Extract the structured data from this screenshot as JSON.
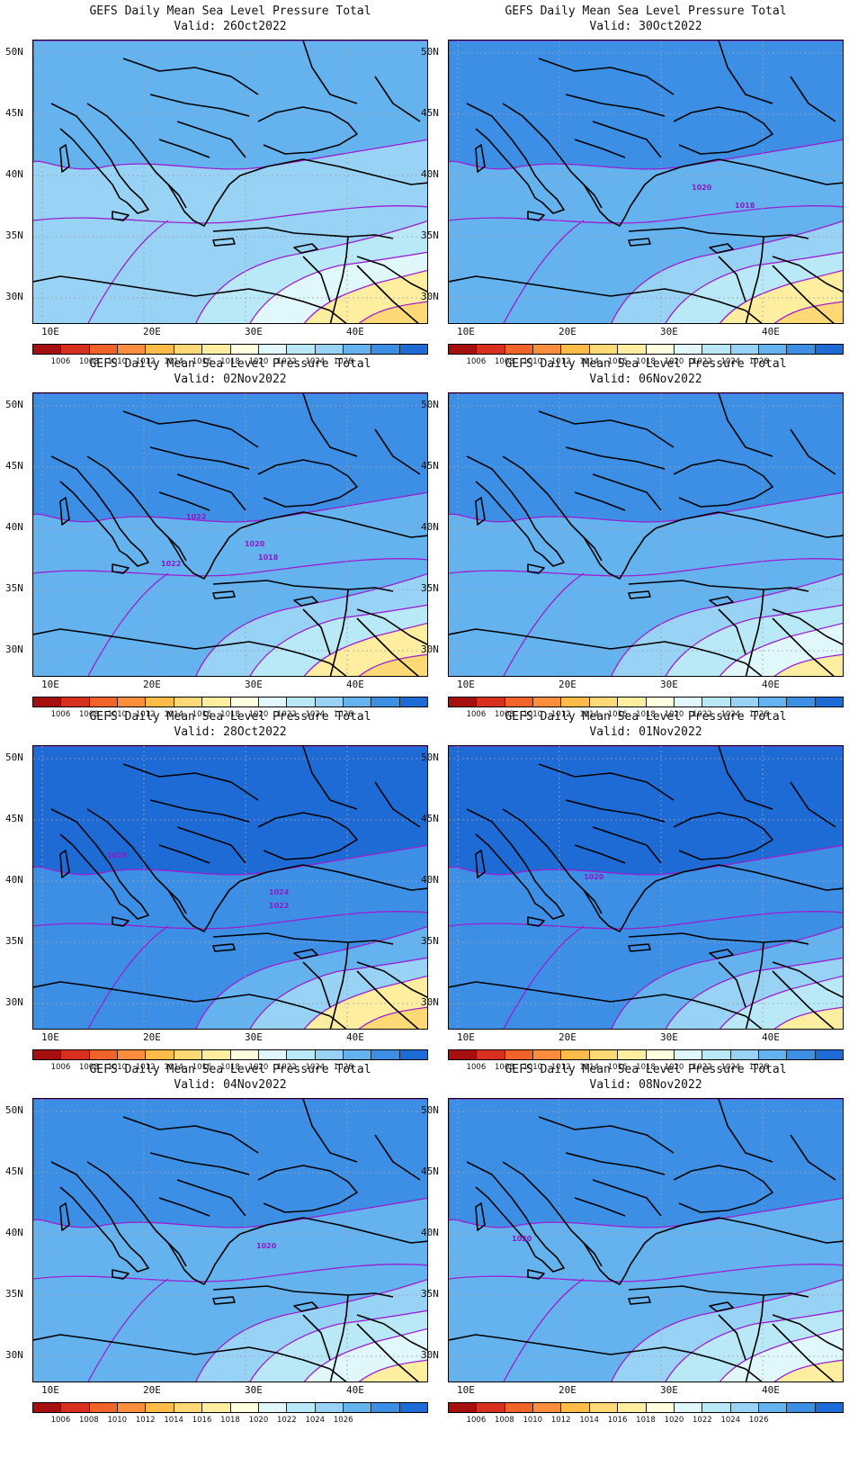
{
  "colorbar": {
    "colors": [
      "#a50f0f",
      "#d7301f",
      "#f2632a",
      "#fc8d3c",
      "#fdbb4a",
      "#fed976",
      "#ffeda0",
      "#ffffe0",
      "#e0f7fb",
      "#b9e9f7",
      "#98d2f5",
      "#64b2ee",
      "#3c8fe5",
      "#1f6bd6"
    ],
    "labels": [
      "1006",
      "1008",
      "1010",
      "1012",
      "1014",
      "1016",
      "1018",
      "1020",
      "1022",
      "1024",
      "1026"
    ]
  },
  "axes": {
    "lat_labels": [
      "50N",
      "45N",
      "40N",
      "35N",
      "30N"
    ],
    "lon_labels": [
      "10E",
      "20E",
      "30E",
      "40E"
    ]
  },
  "panels": [
    {
      "line1": "GEFS Daily Mean Sea Level Pressure Total",
      "line2": "Valid: 26Oct2022",
      "contour_labels": []
    },
    {
      "line1": "GEFS Daily Mean Sea Level Pressure Total",
      "line2": "Valid: 02Nov2022",
      "contour_labels": [
        "1022",
        "1020",
        "1018",
        "1022"
      ]
    },
    {
      "line1": "GEFS Daily Mean Sea Level Pressure Total",
      "line2": "Valid: 28Oct2022",
      "contour_labels": [
        "1026",
        "1024",
        "1022"
      ]
    },
    {
      "line1": "GEFS Daily Mean Sea Level Pressure Total",
      "line2": "Valid: 04Nov2022",
      "contour_labels": [
        "1020"
      ]
    },
    {
      "line1": "GEFS Daily Mean Sea Level Pressure Total",
      "line2": "Valid: 30Oct2022",
      "contour_labels": [
        "1020",
        "1018"
      ]
    },
    {
      "line1": "GEFS Daily Mean Sea Level Pressure Total",
      "line2": "Valid: 06Nov2022",
      "contour_labels": []
    },
    {
      "line1": "GEFS Daily Mean Sea Level Pressure Total",
      "line2": "Valid: 01Nov2022",
      "contour_labels": [
        "1020"
      ]
    },
    {
      "line1": "GEFS Daily Mean Sea Level Pressure Total",
      "line2": "Valid: 08Nov2022",
      "contour_labels": [
        "1020"
      ]
    }
  ]
}
